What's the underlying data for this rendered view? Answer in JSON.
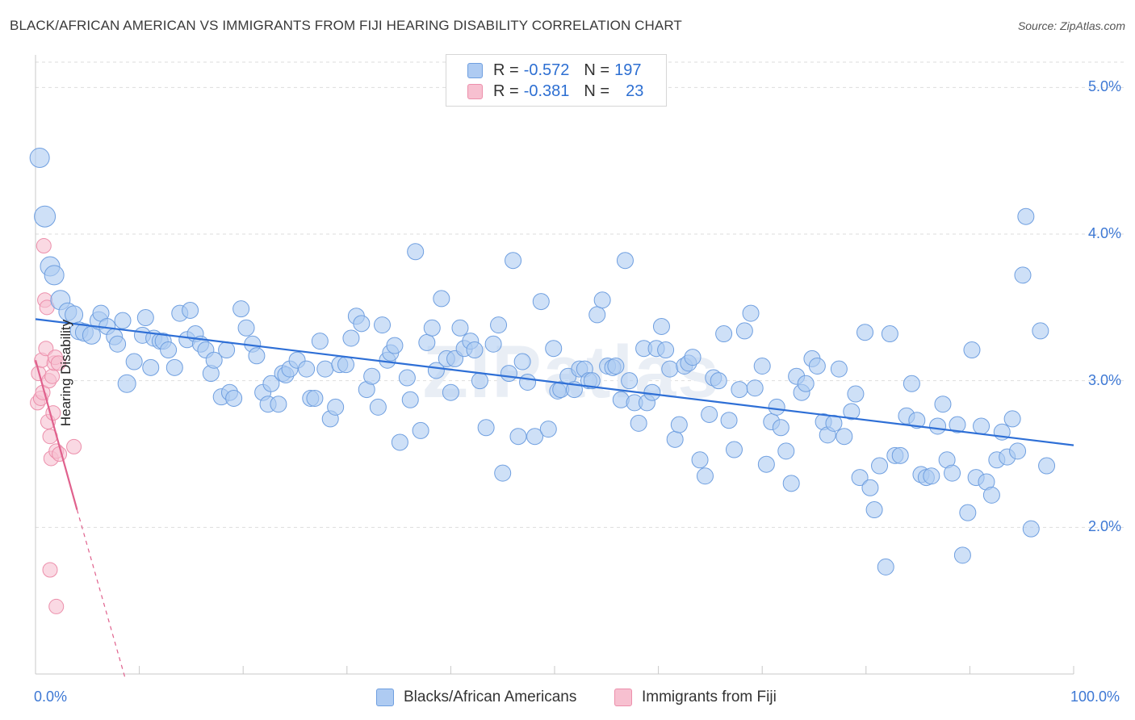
{
  "header": {
    "title": "BLACK/AFRICAN AMERICAN VS IMMIGRANTS FROM FIJI HEARING DISABILITY CORRELATION CHART",
    "source": "Source: ZipAtlas.com"
  },
  "legend": {
    "rows": [
      {
        "r_label": "R =",
        "r_value": "-0.572",
        "n_label": "N =",
        "n_value": "197"
      },
      {
        "r_label": "R =",
        "r_value": "-0.381",
        "n_label": "N =",
        "n_value": "23"
      }
    ]
  },
  "watermark": "ZIPatlas",
  "colors": {
    "blue_fill": "#aecbf2",
    "blue_stroke": "#6f9fe0",
    "blue_line": "#2e6fd6",
    "pink_fill": "#f7c0d0",
    "pink_stroke": "#ec8fab",
    "pink_line": "#e0618d",
    "tick_text": "#3d78d4",
    "grid": "#dddddd"
  },
  "chart_data": {
    "type": "scatter",
    "title": "BLACK/AFRICAN AMERICAN VS IMMIGRANTS FROM FIJI HEARING DISABILITY CORRELATION CHART",
    "xlabel": "",
    "ylabel": "Hearing Disability",
    "xlim": [
      0,
      100
    ],
    "ylim": [
      1.0,
      5.2
    ],
    "x_tick_labels": [
      "0.0%",
      "100.0%"
    ],
    "y_ticks": [
      2.0,
      3.0,
      4.0,
      5.0
    ],
    "y_tick_labels": [
      "2.0%",
      "3.0%",
      "4.0%",
      "5.0%"
    ],
    "grid": "horizontal dashed",
    "legend_position": "bottom-center",
    "series": [
      {
        "name": "Blacks/African Americans",
        "color": "#aecbf2",
        "trend": {
          "x": [
            0,
            100
          ],
          "y": [
            3.42,
            2.56
          ]
        },
        "points": [
          [
            0.4,
            4.52,
            12
          ],
          [
            0.9,
            4.12,
            13
          ],
          [
            1.4,
            3.78,
            12
          ],
          [
            1.8,
            3.72,
            12
          ],
          [
            2.4,
            3.55,
            12
          ],
          [
            3.1,
            3.47,
            11
          ],
          [
            3.7,
            3.45,
            11
          ],
          [
            4.2,
            3.34,
            11
          ],
          [
            4.7,
            3.33,
            11
          ],
          [
            5.4,
            3.31,
            11
          ],
          [
            6.1,
            3.41,
            11
          ],
          [
            6.3,
            3.46,
            10
          ],
          [
            6.9,
            3.37,
            10
          ],
          [
            7.6,
            3.3,
            10
          ],
          [
            7.9,
            3.25,
            10
          ],
          [
            8.4,
            3.41,
            10
          ],
          [
            8.8,
            2.98,
            11
          ],
          [
            9.5,
            3.13,
            10
          ],
          [
            10.3,
            3.31,
            10
          ],
          [
            10.6,
            3.43,
            10
          ],
          [
            11.1,
            3.09,
            10
          ],
          [
            11.4,
            3.29,
            10
          ],
          [
            12.0,
            3.27,
            10
          ],
          [
            12.3,
            3.27,
            10
          ],
          [
            12.8,
            3.21,
            10
          ],
          [
            13.4,
            3.09,
            10
          ],
          [
            13.9,
            3.46,
            10
          ],
          [
            14.6,
            3.28,
            10
          ],
          [
            14.9,
            3.48,
            10
          ],
          [
            15.4,
            3.32,
            10
          ],
          [
            15.9,
            3.25,
            10
          ],
          [
            16.4,
            3.21,
            10
          ],
          [
            16.9,
            3.05,
            10
          ],
          [
            17.2,
            3.14,
            10
          ],
          [
            17.9,
            2.89,
            10
          ],
          [
            18.4,
            3.21,
            10
          ],
          [
            18.7,
            2.92,
            10
          ],
          [
            19.1,
            2.88,
            10
          ],
          [
            19.8,
            3.49,
            10
          ],
          [
            20.3,
            3.36,
            10
          ],
          [
            20.9,
            3.25,
            10
          ],
          [
            21.3,
            3.17,
            10
          ],
          [
            21.9,
            2.92,
            10
          ],
          [
            22.4,
            2.84,
            10
          ],
          [
            22.7,
            2.98,
            10
          ],
          [
            23.4,
            2.84,
            10
          ],
          [
            23.8,
            3.05,
            10
          ],
          [
            24.1,
            3.04,
            10
          ],
          [
            24.5,
            3.08,
            10
          ],
          [
            25.2,
            3.14,
            10
          ],
          [
            26.1,
            3.08,
            10
          ],
          [
            26.5,
            2.88,
            10
          ],
          [
            26.9,
            2.88,
            10
          ],
          [
            27.4,
            3.27,
            10
          ],
          [
            27.9,
            3.08,
            10
          ],
          [
            28.4,
            2.74,
            10
          ],
          [
            28.9,
            2.82,
            10
          ],
          [
            29.3,
            3.11,
            10
          ],
          [
            29.9,
            3.11,
            10
          ],
          [
            30.4,
            3.29,
            10
          ],
          [
            30.9,
            3.44,
            10
          ],
          [
            31.4,
            3.39,
            10
          ],
          [
            31.9,
            2.94,
            10
          ],
          [
            32.4,
            3.03,
            10
          ],
          [
            33.0,
            2.82,
            10
          ],
          [
            33.4,
            3.38,
            10
          ],
          [
            33.9,
            3.14,
            10
          ],
          [
            34.2,
            3.19,
            10
          ],
          [
            34.6,
            3.24,
            10
          ],
          [
            35.1,
            2.58,
            10
          ],
          [
            35.8,
            3.02,
            10
          ],
          [
            36.1,
            2.87,
            10
          ],
          [
            36.6,
            3.88,
            10
          ],
          [
            37.1,
            2.66,
            10
          ],
          [
            37.7,
            3.26,
            10
          ],
          [
            38.2,
            3.36,
            10
          ],
          [
            38.6,
            3.07,
            10
          ],
          [
            39.1,
            3.56,
            10
          ],
          [
            39.6,
            3.15,
            10
          ],
          [
            40.0,
            2.92,
            10
          ],
          [
            40.4,
            3.15,
            10
          ],
          [
            40.9,
            3.36,
            10
          ],
          [
            41.3,
            3.22,
            10
          ],
          [
            41.9,
            3.27,
            10
          ],
          [
            42.3,
            3.21,
            10
          ],
          [
            42.8,
            3.0,
            10
          ],
          [
            43.4,
            2.68,
            10
          ],
          [
            44.1,
            3.25,
            10
          ],
          [
            44.6,
            3.38,
            10
          ],
          [
            45.0,
            2.37,
            10
          ],
          [
            45.6,
            3.05,
            10
          ],
          [
            46.0,
            3.82,
            10
          ],
          [
            46.5,
            2.62,
            10
          ],
          [
            46.9,
            3.13,
            10
          ],
          [
            47.4,
            2.99,
            10
          ],
          [
            48.1,
            2.62,
            10
          ],
          [
            48.7,
            3.54,
            10
          ],
          [
            49.4,
            2.67,
            10
          ],
          [
            49.9,
            3.22,
            10
          ],
          [
            50.3,
            2.93,
            10
          ],
          [
            50.6,
            2.94,
            10
          ],
          [
            51.3,
            3.03,
            10
          ],
          [
            51.9,
            2.94,
            10
          ],
          [
            52.4,
            3.08,
            10
          ],
          [
            52.9,
            3.08,
            10
          ],
          [
            53.3,
            3.0,
            10
          ],
          [
            53.6,
            3.0,
            10
          ],
          [
            54.1,
            3.45,
            10
          ],
          [
            54.6,
            3.55,
            10
          ],
          [
            55.1,
            3.1,
            10
          ],
          [
            55.6,
            3.09,
            10
          ],
          [
            55.9,
            3.1,
            10
          ],
          [
            56.4,
            2.87,
            10
          ],
          [
            56.8,
            3.82,
            10
          ],
          [
            57.2,
            3.0,
            10
          ],
          [
            57.7,
            2.85,
            10
          ],
          [
            58.1,
            2.71,
            10
          ],
          [
            58.6,
            3.22,
            10
          ],
          [
            58.9,
            2.85,
            10
          ],
          [
            59.4,
            2.92,
            10
          ],
          [
            59.8,
            3.22,
            10
          ],
          [
            60.3,
            3.37,
            10
          ],
          [
            60.7,
            3.21,
            10
          ],
          [
            61.1,
            3.08,
            10
          ],
          [
            61.6,
            2.6,
            10
          ],
          [
            62.0,
            2.7,
            10
          ],
          [
            62.5,
            3.1,
            10
          ],
          [
            62.9,
            3.12,
            10
          ],
          [
            63.3,
            3.16,
            10
          ],
          [
            64.0,
            2.46,
            10
          ],
          [
            64.5,
            2.35,
            10
          ],
          [
            64.9,
            2.77,
            10
          ],
          [
            65.3,
            3.02,
            10
          ],
          [
            65.8,
            3.0,
            10
          ],
          [
            66.3,
            3.32,
            10
          ],
          [
            66.8,
            2.73,
            10
          ],
          [
            67.3,
            2.53,
            10
          ],
          [
            67.8,
            2.94,
            10
          ],
          [
            68.3,
            3.34,
            10
          ],
          [
            68.9,
            3.46,
            10
          ],
          [
            69.3,
            2.95,
            10
          ],
          [
            70.0,
            3.1,
            10
          ],
          [
            70.4,
            2.43,
            10
          ],
          [
            70.9,
            2.72,
            10
          ],
          [
            71.4,
            2.82,
            10
          ],
          [
            71.8,
            2.68,
            10
          ],
          [
            72.3,
            2.52,
            10
          ],
          [
            72.8,
            2.3,
            10
          ],
          [
            73.3,
            3.03,
            10
          ],
          [
            73.8,
            2.92,
            10
          ],
          [
            74.2,
            2.98,
            10
          ],
          [
            74.8,
            3.15,
            10
          ],
          [
            75.3,
            3.1,
            10
          ],
          [
            75.9,
            2.72,
            10
          ],
          [
            76.3,
            2.63,
            10
          ],
          [
            76.9,
            2.71,
            10
          ],
          [
            77.4,
            3.08,
            10
          ],
          [
            77.9,
            2.62,
            10
          ],
          [
            78.6,
            2.79,
            10
          ],
          [
            79.0,
            2.91,
            10
          ],
          [
            79.4,
            2.34,
            10
          ],
          [
            79.9,
            3.33,
            10
          ],
          [
            80.4,
            2.27,
            10
          ],
          [
            80.8,
            2.12,
            10
          ],
          [
            81.3,
            2.42,
            10
          ],
          [
            81.9,
            1.73,
            10
          ],
          [
            82.3,
            3.32,
            10
          ],
          [
            82.8,
            2.49,
            10
          ],
          [
            83.3,
            2.49,
            10
          ],
          [
            83.9,
            2.76,
            10
          ],
          [
            84.4,
            2.98,
            10
          ],
          [
            84.9,
            2.73,
            10
          ],
          [
            85.3,
            2.36,
            10
          ],
          [
            85.8,
            2.34,
            10
          ],
          [
            86.3,
            2.35,
            10
          ],
          [
            86.9,
            2.69,
            10
          ],
          [
            87.4,
            2.84,
            10
          ],
          [
            87.8,
            2.46,
            10
          ],
          [
            88.3,
            2.37,
            10
          ],
          [
            88.8,
            2.7,
            10
          ],
          [
            89.3,
            1.81,
            10
          ],
          [
            89.8,
            2.1,
            10
          ],
          [
            90.2,
            3.21,
            10
          ],
          [
            90.6,
            2.34,
            10
          ],
          [
            91.1,
            2.69,
            10
          ],
          [
            91.6,
            2.31,
            10
          ],
          [
            92.1,
            2.22,
            10
          ],
          [
            92.6,
            2.46,
            10
          ],
          [
            93.1,
            2.65,
            10
          ],
          [
            93.6,
            2.48,
            10
          ],
          [
            94.1,
            2.74,
            10
          ],
          [
            94.6,
            2.52,
            10
          ],
          [
            95.1,
            3.72,
            10
          ],
          [
            95.4,
            4.12,
            10
          ],
          [
            95.9,
            1.99,
            10
          ],
          [
            96.8,
            3.34,
            10
          ],
          [
            97.4,
            2.42,
            10
          ]
        ]
      },
      {
        "name": "Immigrants from Fiji",
        "color": "#f7c0d0",
        "trend": {
          "x": [
            0,
            4.0
          ],
          "y": [
            3.14,
            2.12
          ]
        },
        "trend_extension": {
          "x": [
            4.0,
            8.6
          ],
          "y": [
            2.12,
            0.98
          ]
        },
        "points": [
          [
            0.2,
            2.85,
            9
          ],
          [
            0.3,
            3.05,
            9
          ],
          [
            0.5,
            2.88,
            9
          ],
          [
            0.6,
            3.14,
            9
          ],
          [
            0.7,
            2.92,
            9
          ],
          [
            0.8,
            3.92,
            9
          ],
          [
            0.9,
            3.55,
            9
          ],
          [
            1.0,
            3.22,
            9
          ],
          [
            1.1,
            3.5,
            9
          ],
          [
            1.2,
            2.72,
            9
          ],
          [
            1.3,
            3.0,
            9
          ],
          [
            1.4,
            2.62,
            9
          ],
          [
            1.5,
            2.47,
            9
          ],
          [
            1.6,
            3.03,
            9
          ],
          [
            1.7,
            2.78,
            9
          ],
          [
            1.8,
            3.12,
            9
          ],
          [
            1.9,
            3.16,
            9
          ],
          [
            2.0,
            2.52,
            9
          ],
          [
            2.2,
            3.12,
            9
          ],
          [
            2.3,
            2.5,
            9
          ],
          [
            1.4,
            1.71,
            9
          ],
          [
            2.0,
            1.46,
            9
          ],
          [
            3.7,
            2.55,
            9
          ]
        ]
      }
    ]
  },
  "bottom_legend": {
    "items": [
      "Blacks/African Americans",
      "Immigrants from Fiji"
    ]
  }
}
